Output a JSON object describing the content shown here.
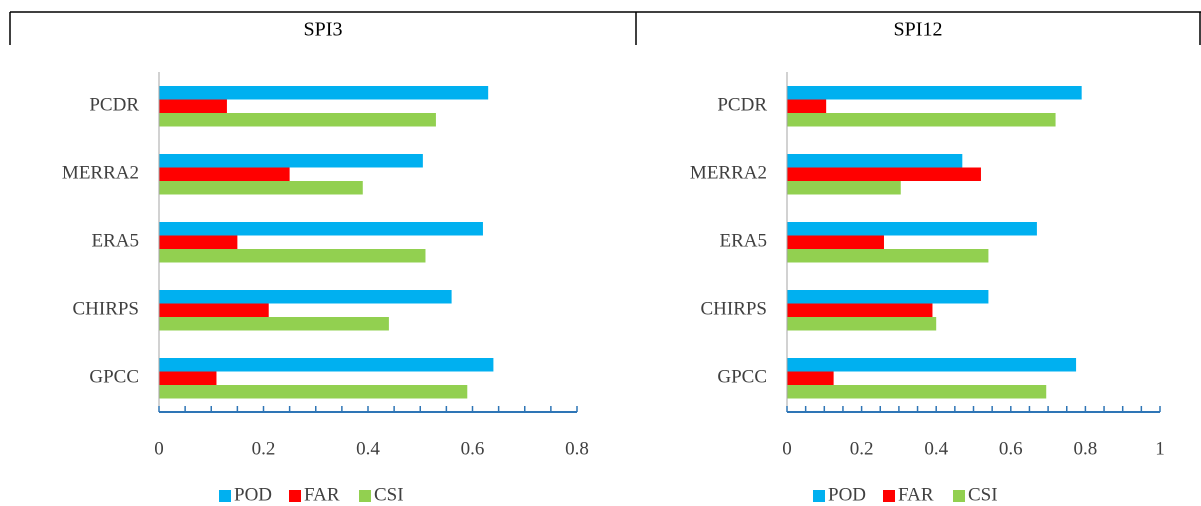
{
  "chart_data": [
    {
      "type": "hbar",
      "title": "SPI3",
      "categories": [
        "PCDR",
        "MERRA2",
        "ERA5",
        "CHIRPS",
        "GPCC"
      ],
      "series": [
        {
          "name": "POD",
          "color": "#00b0f0",
          "values": [
            0.63,
            0.505,
            0.62,
            0.56,
            0.64
          ]
        },
        {
          "name": "FAR",
          "color": "#ff0000",
          "values": [
            0.13,
            0.25,
            0.15,
            0.21,
            0.11
          ]
        },
        {
          "name": "CSI",
          "color": "#92d050",
          "values": [
            0.53,
            0.39,
            0.51,
            0.44,
            0.59
          ]
        }
      ],
      "xlim": [
        0,
        0.8
      ],
      "xticks": [
        0,
        0.2,
        0.4,
        0.6,
        0.8
      ],
      "minor_xticks": [
        0.05,
        0.1,
        0.15,
        0.25,
        0.3,
        0.35,
        0.45,
        0.5,
        0.55,
        0.65,
        0.7,
        0.75
      ],
      "legend": "bottom"
    },
    {
      "type": "hbar",
      "title": "SPI12",
      "categories": [
        "PCDR",
        "MERRA2",
        "ERA5",
        "CHIRPS",
        "GPCC"
      ],
      "series": [
        {
          "name": "POD",
          "color": "#00b0f0",
          "values": [
            0.79,
            0.47,
            0.67,
            0.54,
            0.775
          ]
        },
        {
          "name": "FAR",
          "color": "#ff0000",
          "values": [
            0.105,
            0.52,
            0.26,
            0.39,
            0.125
          ]
        },
        {
          "name": "CSI",
          "color": "#92d050",
          "values": [
            0.72,
            0.305,
            0.54,
            0.4,
            0.695
          ]
        }
      ],
      "xlim": [
        0,
        1
      ],
      "xticks": [
        0,
        0.2,
        0.4,
        0.6,
        0.8,
        1
      ],
      "minor_xticks": [
        0.05,
        0.1,
        0.15,
        0.25,
        0.3,
        0.35,
        0.45,
        0.5,
        0.55,
        0.65,
        0.7,
        0.75,
        0.85,
        0.9,
        0.95
      ],
      "legend": "bottom"
    }
  ]
}
